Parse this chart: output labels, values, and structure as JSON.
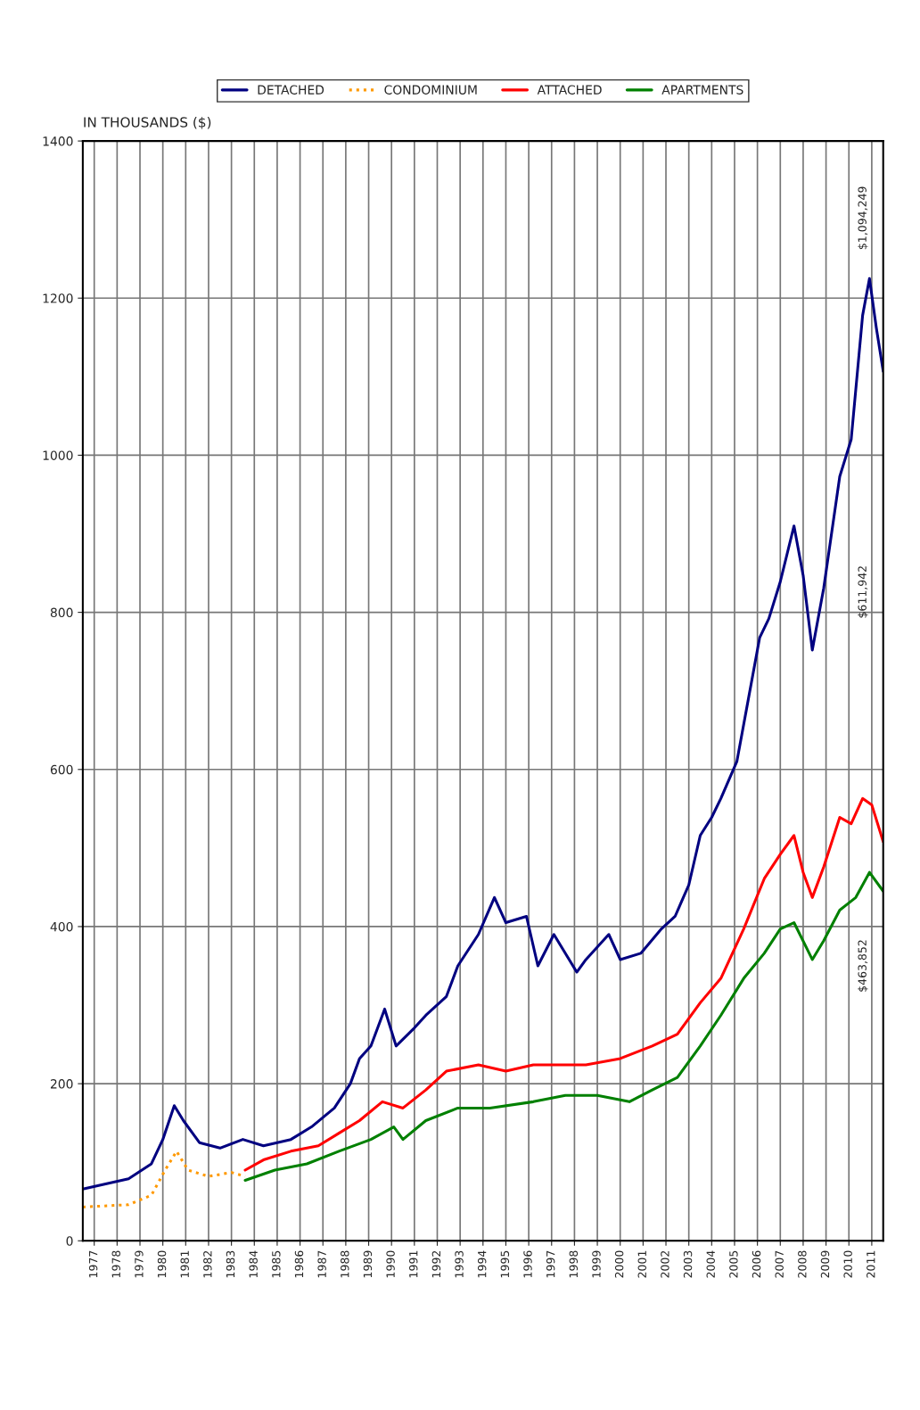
{
  "chart_data": {
    "type": "line",
    "ylabel": "IN THOUSANDS ($)",
    "xlim": [
      1977,
      2012
    ],
    "xticks": [
      {
        "value": 1977.5,
        "label": "1977"
      },
      {
        "value": 1978.5,
        "label": "1978"
      },
      {
        "value": 1979.5,
        "label": "1979"
      },
      {
        "value": 1980.5,
        "label": "1980"
      },
      {
        "value": 1981.5,
        "label": "1981"
      },
      {
        "value": 1982.5,
        "label": "1982"
      },
      {
        "value": 1983.5,
        "label": "1983"
      },
      {
        "value": 1984.5,
        "label": "1984"
      },
      {
        "value": 1985.5,
        "label": "1985"
      },
      {
        "value": 1986.5,
        "label": "1986"
      },
      {
        "value": 1987.5,
        "label": "1987"
      },
      {
        "value": 1988.5,
        "label": "1988"
      },
      {
        "value": 1989.5,
        "label": "1989"
      },
      {
        "value": 1990.5,
        "label": "1990"
      },
      {
        "value": 1991.5,
        "label": "1991"
      },
      {
        "value": 1992.5,
        "label": "1992"
      },
      {
        "value": 1993.5,
        "label": "1993"
      },
      {
        "value": 1994.5,
        "label": "1994"
      },
      {
        "value": 1995.5,
        "label": "1995"
      },
      {
        "value": 1996.5,
        "label": "1996"
      },
      {
        "value": 1997.5,
        "label": "1997"
      },
      {
        "value": 1998.5,
        "label": "1998"
      },
      {
        "value": 1999.5,
        "label": "1999"
      },
      {
        "value": 2000.5,
        "label": "2000"
      },
      {
        "value": 2001.5,
        "label": "2001"
      },
      {
        "value": 2002.5,
        "label": "2002"
      },
      {
        "value": 2003.5,
        "label": "2003"
      },
      {
        "value": 2004.5,
        "label": "2004"
      },
      {
        "value": 2005.5,
        "label": "2005"
      },
      {
        "value": 2006.5,
        "label": "2006"
      },
      {
        "value": 2007.5,
        "label": "2007"
      },
      {
        "value": 2008.5,
        "label": "2008"
      },
      {
        "value": 2009.5,
        "label": "2009"
      },
      {
        "value": 2010.5,
        "label": "2010"
      },
      {
        "value": 2011.5,
        "label": "2011"
      }
    ],
    "ylim": [
      0,
      1400
    ],
    "yticks": [
      0,
      200,
      400,
      600,
      800,
      1000,
      1200,
      1400
    ],
    "grid": true,
    "legend": "top",
    "marker": "none",
    "series": [
      {
        "name": "DETACHED",
        "color": "#000080",
        "line_style": "solid",
        "x": [
          1977.0,
          1979.0,
          1980.0,
          1980.5,
          1981.0,
          1981.4,
          1982.1,
          1983.0,
          1984.0,
          1984.9,
          1986.1,
          1987.0,
          1988.0,
          1988.7,
          1989.1,
          1989.6,
          1990.2,
          1990.7,
          1991.5,
          1992.0,
          1992.9,
          1993.4,
          1994.3,
          1995.0,
          1995.5,
          1996.4,
          1996.9,
          1997.6,
          1998.6,
          1999.0,
          2000.0,
          2000.5,
          2001.4,
          2002.3,
          2002.9,
          2003.5,
          2004.0,
          2004.5,
          2004.9,
          2005.6,
          2006.1,
          2006.6,
          2007.0,
          2007.5,
          2008.1,
          2008.5,
          2008.9,
          2009.4,
          2010.1,
          2010.6,
          2011.1,
          2011.4,
          2011.7,
          2012.0
        ],
        "values": [
          66,
          79,
          98,
          129,
          172,
          153,
          125,
          118,
          129,
          121,
          129,
          145,
          169,
          200,
          232,
          248,
          295,
          248,
          271,
          287,
          311,
          350,
          390,
          437,
          405,
          413,
          350,
          390,
          342,
          358,
          390,
          358,
          366,
          397,
          413,
          453,
          516,
          539,
          563,
          610,
          689,
          768,
          792,
          839,
          910,
          847,
          752,
          831,
          973,
          1020,
          1178,
          1225,
          1162,
          1107
        ]
      },
      {
        "name": "CONDOMINIUM",
        "color": "#ff9900",
        "line_style": "dotted",
        "x": [
          1977.0,
          1979.0,
          1980.0,
          1980.6,
          1981.1,
          1981.6,
          1982.5,
          1983.5,
          1984.1
        ],
        "values": [
          43,
          46,
          58,
          90,
          114,
          90,
          82,
          87,
          82
        ]
      },
      {
        "name": "ATTACHED",
        "color": "#ff0000",
        "line_style": "solid",
        "x": [
          1984.1,
          1984.9,
          1986.1,
          1987.3,
          1988.2,
          1989.1,
          1990.1,
          1991.0,
          1992.0,
          1992.9,
          1994.3,
          1995.5,
          1996.7,
          1998.1,
          1999.0,
          2000.5,
          2001.9,
          2003.0,
          2004.0,
          2004.9,
          2005.9,
          2006.8,
          2007.5,
          2008.1,
          2008.5,
          2008.9,
          2009.4,
          2010.1,
          2010.6,
          2011.1,
          2011.5,
          2012.0
        ],
        "values": [
          90,
          103,
          114,
          121,
          137,
          153,
          177,
          169,
          192,
          216,
          224,
          216,
          224,
          224,
          224,
          232,
          248,
          263,
          303,
          334,
          397,
          461,
          492,
          516,
          469,
          437,
          476,
          539,
          531,
          563,
          555,
          508
        ]
      },
      {
        "name": "APARTMENTS",
        "color": "#008000",
        "line_style": "solid",
        "x": [
          1984.1,
          1985.4,
          1986.8,
          1988.2,
          1989.6,
          1990.6,
          1991.0,
          1992.0,
          1993.4,
          1994.8,
          1996.7,
          1998.1,
          1999.5,
          2000.9,
          2001.9,
          2003.0,
          2004.0,
          2004.9,
          2005.9,
          2006.8,
          2007.5,
          2008.1,
          2008.9,
          2009.4,
          2010.1,
          2010.8,
          2011.4,
          2012.0
        ],
        "values": [
          77,
          90,
          98,
          114,
          129,
          145,
          129,
          153,
          169,
          169,
          177,
          185,
          185,
          177,
          192,
          208,
          248,
          287,
          334,
          366,
          397,
          405,
          358,
          382,
          421,
          437,
          469,
          445
        ]
      }
    ],
    "annotations": [
      "$463,852",
      "$611,942",
      "$1,094,249"
    ]
  }
}
